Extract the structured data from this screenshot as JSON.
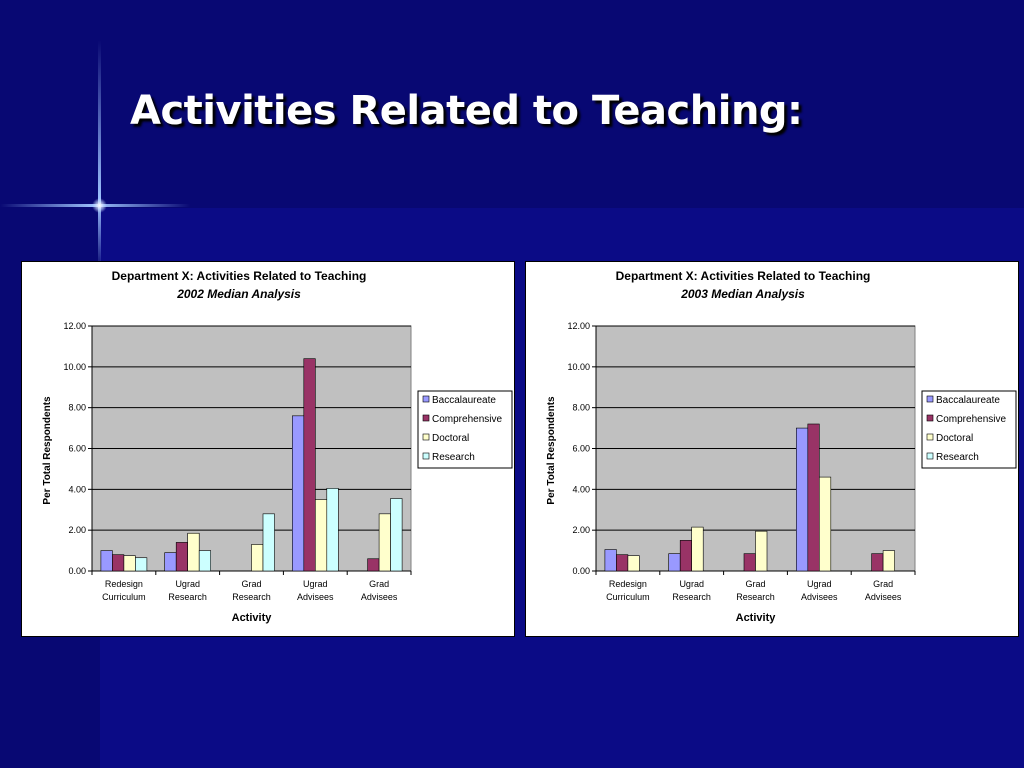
{
  "slide": {
    "title": "Activities Related to Teaching:"
  },
  "colors": {
    "background": "#0a0a7e",
    "plot_area": "#c0c0c0",
    "series": [
      "#9999ff",
      "#993366",
      "#ffffcc",
      "#ccffff"
    ]
  },
  "chart_data": [
    {
      "type": "bar",
      "title": "Department X:  Activities Related to Teaching",
      "subtitle": "2002 Median Analysis",
      "xlabel": "Activity",
      "ylabel": "Per Total Respondents",
      "ylim": [
        0,
        12
      ],
      "yticks": [
        "0.00",
        "2.00",
        "4.00",
        "6.00",
        "8.00",
        "10.00",
        "12.00"
      ],
      "categories": [
        [
          "Redesign",
          "Curriculum"
        ],
        [
          "Ugrad",
          "Research"
        ],
        [
          "Grad",
          "Research"
        ],
        [
          "Ugrad",
          "Advisees"
        ],
        [
          "Grad",
          "Advisees"
        ]
      ],
      "series": [
        {
          "name": "Baccalaureate",
          "values": [
            1.0,
            0.9,
            null,
            7.6,
            null
          ]
        },
        {
          "name": "Comprehensive",
          "values": [
            0.8,
            1.4,
            null,
            10.4,
            0.6
          ]
        },
        {
          "name": "Doctoral",
          "values": [
            0.75,
            1.85,
            1.3,
            3.5,
            2.8
          ]
        },
        {
          "name": "Research",
          "values": [
            0.65,
            1.0,
            2.8,
            4.05,
            3.55
          ]
        }
      ],
      "grid": true,
      "legend": "right"
    },
    {
      "type": "bar",
      "title": "Department X:  Activities Related to Teaching",
      "subtitle": "2003 Median Analysis",
      "xlabel": "Activity",
      "ylabel": "Per Total Respondents",
      "ylim": [
        0,
        12
      ],
      "yticks": [
        "0.00",
        "2.00",
        "4.00",
        "6.00",
        "8.00",
        "10.00",
        "12.00"
      ],
      "categories": [
        [
          "Redesign",
          "Curriculum"
        ],
        [
          "Ugrad",
          "Research"
        ],
        [
          "Grad",
          "Research"
        ],
        [
          "Ugrad",
          "Advisees"
        ],
        [
          "Grad",
          "Advisees"
        ]
      ],
      "series": [
        {
          "name": "Baccalaureate",
          "values": [
            1.05,
            0.85,
            null,
            7.0,
            null
          ]
        },
        {
          "name": "Comprehensive",
          "values": [
            0.8,
            1.5,
            0.85,
            7.2,
            0.85
          ]
        },
        {
          "name": "Doctoral",
          "values": [
            0.75,
            2.15,
            1.95,
            4.6,
            1.0
          ]
        },
        {
          "name": "Research",
          "values": [
            null,
            null,
            null,
            null,
            null
          ]
        }
      ],
      "grid": true,
      "legend": "right"
    }
  ]
}
